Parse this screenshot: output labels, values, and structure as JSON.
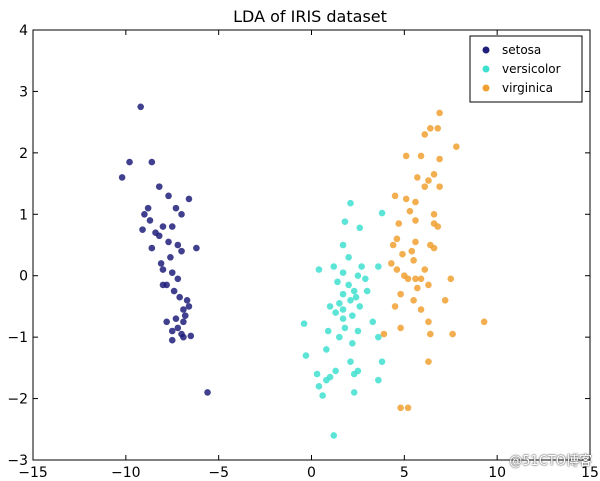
{
  "chart_data": {
    "type": "scatter",
    "title": "LDA of IRIS dataset",
    "xlabel": "",
    "ylabel": "",
    "xlim": [
      -15,
      15
    ],
    "ylim": [
      -3,
      4
    ],
    "xticks": [
      "−15",
      "−10",
      "−5",
      "0",
      "5",
      "10",
      "15"
    ],
    "yticks": [
      "−3",
      "−2",
      "−1",
      "0",
      "1",
      "2",
      "3",
      "4"
    ],
    "grid": false,
    "legend_position": "top-right",
    "series": [
      {
        "name": "setosa",
        "color": "#1f1f7a",
        "points": [
          [
            -9.2,
            2.75
          ],
          [
            -9.8,
            1.85
          ],
          [
            -8.6,
            1.85
          ],
          [
            -10.2,
            1.6
          ],
          [
            -8.2,
            1.45
          ],
          [
            -7.7,
            1.3
          ],
          [
            -6.6,
            1.25
          ],
          [
            -7.3,
            1.1
          ],
          [
            -8.8,
            1.1
          ],
          [
            -9.0,
            1.0
          ],
          [
            -7.0,
            1.0
          ],
          [
            -8.7,
            0.9
          ],
          [
            -8.0,
            0.8
          ],
          [
            -7.5,
            0.8
          ],
          [
            -9.1,
            0.75
          ],
          [
            -8.4,
            0.7
          ],
          [
            -8.2,
            0.65
          ],
          [
            -7.7,
            0.55
          ],
          [
            -7.2,
            0.5
          ],
          [
            -6.2,
            0.45
          ],
          [
            -8.6,
            0.45
          ],
          [
            -7.0,
            0.4
          ],
          [
            -7.6,
            0.3
          ],
          [
            -8.1,
            0.2
          ],
          [
            -8.0,
            0.1
          ],
          [
            -7.5,
            0.05
          ],
          [
            -7.2,
            -0.05
          ],
          [
            -7.8,
            -0.15
          ],
          [
            -8.0,
            -0.15
          ],
          [
            -7.4,
            -0.25
          ],
          [
            -7.1,
            -0.35
          ],
          [
            -6.7,
            -0.4
          ],
          [
            -6.6,
            -0.5
          ],
          [
            -6.9,
            -0.55
          ],
          [
            -6.8,
            -0.65
          ],
          [
            -7.3,
            -0.7
          ],
          [
            -6.9,
            -0.75
          ],
          [
            -7.8,
            -0.75
          ],
          [
            -7.2,
            -0.85
          ],
          [
            -7.5,
            -0.9
          ],
          [
            -7.0,
            -0.95
          ],
          [
            -6.5,
            -0.98
          ],
          [
            -6.9,
            -1.0
          ],
          [
            -7.5,
            -1.05
          ],
          [
            -5.6,
            -1.9
          ]
        ]
      },
      {
        "name": "versicolor",
        "color": "#40e0d0",
        "points": [
          [
            2.1,
            1.18
          ],
          [
            3.8,
            1.02
          ],
          [
            1.8,
            0.88
          ],
          [
            2.6,
            0.78
          ],
          [
            1.7,
            0.5
          ],
          [
            2.0,
            0.3
          ],
          [
            1.2,
            0.15
          ],
          [
            2.7,
            0.15
          ],
          [
            3.6,
            0.15
          ],
          [
            0.4,
            0.1
          ],
          [
            1.7,
            0.05
          ],
          [
            2.5,
            0.0
          ],
          [
            2.9,
            -0.05
          ],
          [
            1.4,
            -0.1
          ],
          [
            2.0,
            -0.15
          ],
          [
            2.3,
            -0.25
          ],
          [
            3.0,
            -0.25
          ],
          [
            1.7,
            -0.3
          ],
          [
            2.4,
            -0.35
          ],
          [
            2.1,
            -0.4
          ],
          [
            1.5,
            -0.45
          ],
          [
            1.0,
            -0.5
          ],
          [
            2.6,
            -0.5
          ],
          [
            1.7,
            -0.55
          ],
          [
            1.3,
            -0.6
          ],
          [
            2.2,
            -0.65
          ],
          [
            1.7,
            -0.7
          ],
          [
            3.3,
            -0.75
          ],
          [
            -0.4,
            -0.78
          ],
          [
            1.8,
            -0.85
          ],
          [
            0.9,
            -0.9
          ],
          [
            2.5,
            -0.9
          ],
          [
            1.5,
            -1.0
          ],
          [
            3.6,
            -1.0
          ],
          [
            2.2,
            -1.1
          ],
          [
            0.8,
            -1.2
          ],
          [
            -0.3,
            -1.3
          ],
          [
            2.1,
            -1.4
          ],
          [
            3.8,
            -1.4
          ],
          [
            1.3,
            -1.55
          ],
          [
            0.3,
            -1.6
          ],
          [
            2.5,
            -1.55
          ],
          [
            2.3,
            -1.6
          ],
          [
            1.0,
            -1.65
          ],
          [
            0.8,
            -1.7
          ],
          [
            3.6,
            -1.7
          ],
          [
            0.4,
            -1.8
          ],
          [
            2.3,
            -1.9
          ],
          [
            0.6,
            -1.95
          ],
          [
            1.2,
            -2.6
          ]
        ]
      },
      {
        "name": "virginica",
        "color": "#f0a030",
        "points": [
          [
            6.9,
            2.65
          ],
          [
            6.4,
            2.4
          ],
          [
            6.8,
            2.4
          ],
          [
            6.1,
            2.3
          ],
          [
            7.8,
            2.1
          ],
          [
            5.1,
            1.95
          ],
          [
            5.9,
            1.95
          ],
          [
            6.9,
            1.9
          ],
          [
            6.6,
            1.65
          ],
          [
            5.7,
            1.6
          ],
          [
            6.3,
            1.55
          ],
          [
            6.1,
            1.45
          ],
          [
            4.5,
            1.3
          ],
          [
            6.9,
            1.45
          ],
          [
            5.1,
            1.25
          ],
          [
            5.6,
            1.2
          ],
          [
            5.3,
            1.05
          ],
          [
            6.6,
            1.0
          ],
          [
            5.6,
            0.9
          ],
          [
            4.7,
            0.85
          ],
          [
            6.6,
            0.85
          ],
          [
            6.8,
            0.8
          ],
          [
            4.6,
            0.6
          ],
          [
            5.6,
            0.55
          ],
          [
            6.4,
            0.5
          ],
          [
            4.4,
            0.5
          ],
          [
            6.6,
            0.45
          ],
          [
            5.4,
            0.4
          ],
          [
            4.9,
            0.35
          ],
          [
            4.3,
            0.2
          ],
          [
            5.5,
            0.25
          ],
          [
            4.6,
            0.1
          ],
          [
            6.1,
            0.1
          ],
          [
            5.0,
            0.0
          ],
          [
            5.2,
            -0.05
          ],
          [
            5.6,
            -0.05
          ],
          [
            5.9,
            -0.05
          ],
          [
            7.5,
            -0.05
          ],
          [
            5.7,
            -0.2
          ],
          [
            6.3,
            -0.15
          ],
          [
            4.8,
            -0.3
          ],
          [
            5.5,
            -0.4
          ],
          [
            7.2,
            -0.4
          ],
          [
            4.5,
            -0.5
          ],
          [
            5.9,
            -0.55
          ],
          [
            6.3,
            -0.75
          ],
          [
            9.3,
            -0.75
          ],
          [
            4.8,
            -0.85
          ],
          [
            7.6,
            -0.95
          ],
          [
            6.4,
            -0.95
          ],
          [
            3.9,
            -0.95
          ],
          [
            6.3,
            -1.4
          ],
          [
            4.8,
            -2.15
          ],
          [
            5.2,
            -2.15
          ]
        ]
      }
    ]
  },
  "watermark": "@51CTO博客"
}
